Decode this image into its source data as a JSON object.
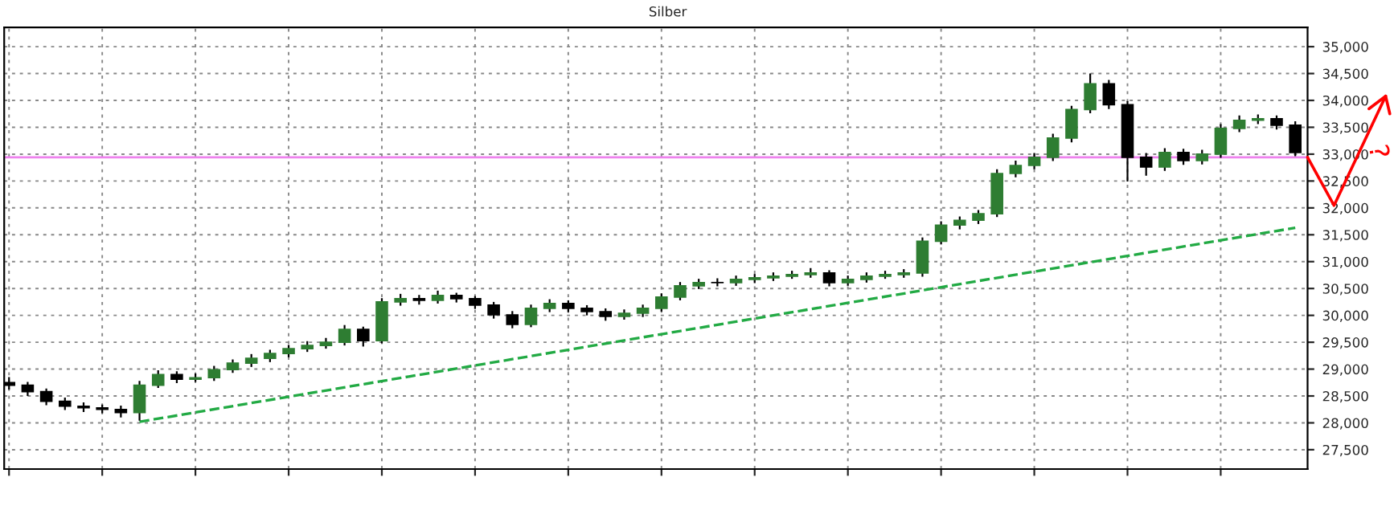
{
  "chart_data": {
    "type": "candlestick",
    "title": "Silber",
    "categories": [
      null,
      null,
      null,
      null,
      null,
      null,
      null,
      null,
      null,
      null,
      null,
      null,
      null,
      null,
      null,
      null,
      null,
      null,
      null,
      null,
      null,
      null,
      null,
      null,
      null,
      null,
      null,
      null,
      null,
      null,
      null,
      null,
      null,
      null,
      null,
      null,
      null,
      null,
      null,
      null,
      null,
      null,
      null,
      null,
      null,
      null,
      null,
      null,
      null,
      null,
      null,
      null,
      null,
      null,
      null,
      null,
      null,
      null,
      null,
      null,
      null,
      null,
      null,
      null,
      null,
      null,
      null,
      null,
      null,
      null
    ],
    "ohlc": [
      [
        28750,
        28850,
        28620,
        28700
      ],
      [
        28700,
        28760,
        28500,
        28580
      ],
      [
        28580,
        28640,
        28330,
        28400
      ],
      [
        28400,
        28470,
        28240,
        28310
      ],
      [
        28310,
        28380,
        28200,
        28280
      ],
      [
        28280,
        28340,
        28180,
        28250
      ],
      [
        28250,
        28320,
        28100,
        28190
      ],
      [
        28190,
        28780,
        28040,
        28700
      ],
      [
        28700,
        28980,
        28650,
        28900
      ],
      [
        28900,
        28960,
        28740,
        28810
      ],
      [
        28810,
        28920,
        28760,
        28840
      ],
      [
        28840,
        29060,
        28780,
        28990
      ],
      [
        28990,
        29180,
        28930,
        29110
      ],
      [
        29110,
        29280,
        29040,
        29200
      ],
      [
        29200,
        29360,
        29130,
        29290
      ],
      [
        29290,
        29450,
        29220,
        29380
      ],
      [
        29380,
        29520,
        29320,
        29440
      ],
      [
        29440,
        29580,
        29380,
        29500
      ],
      [
        29500,
        29820,
        29440,
        29740
      ],
      [
        29740,
        29790,
        29420,
        29530
      ],
      [
        29530,
        30320,
        29480,
        30250
      ],
      [
        30250,
        30400,
        30180,
        30310
      ],
      [
        30310,
        30380,
        30200,
        30280
      ],
      [
        30280,
        30460,
        30220,
        30370
      ],
      [
        30370,
        30420,
        30240,
        30310
      ],
      [
        30310,
        30360,
        30120,
        30190
      ],
      [
        30190,
        30250,
        29940,
        30010
      ],
      [
        30010,
        30080,
        29760,
        29830
      ],
      [
        29830,
        30200,
        29780,
        30130
      ],
      [
        30130,
        30300,
        30060,
        30220
      ],
      [
        30220,
        30280,
        30060,
        30130
      ],
      [
        30130,
        30190,
        30000,
        30070
      ],
      [
        30070,
        30130,
        29900,
        29980
      ],
      [
        29980,
        30110,
        29920,
        30040
      ],
      [
        30040,
        30200,
        29970,
        30130
      ],
      [
        30130,
        30410,
        30070,
        30340
      ],
      [
        30340,
        30620,
        30280,
        30550
      ],
      [
        30550,
        30680,
        30490,
        30610
      ],
      [
        30610,
        30690,
        30540,
        30610
      ],
      [
        30610,
        30740,
        30550,
        30670
      ],
      [
        30670,
        30770,
        30600,
        30700
      ],
      [
        30700,
        30800,
        30640,
        30730
      ],
      [
        30730,
        30830,
        30680,
        30760
      ],
      [
        30760,
        30880,
        30700,
        30790
      ],
      [
        30790,
        30840,
        30540,
        30610
      ],
      [
        30610,
        30740,
        30550,
        30670
      ],
      [
        30670,
        30800,
        30610,
        30730
      ],
      [
        30730,
        30830,
        30680,
        30760
      ],
      [
        30760,
        30860,
        30700,
        30790
      ],
      [
        30790,
        31450,
        30720,
        31380
      ],
      [
        31380,
        31750,
        31320,
        31680
      ],
      [
        31680,
        31840,
        31600,
        31770
      ],
      [
        31770,
        31960,
        31700,
        31890
      ],
      [
        31890,
        32720,
        31830,
        32640
      ],
      [
        32640,
        32880,
        32570,
        32790
      ],
      [
        32790,
        33020,
        32720,
        32940
      ],
      [
        32940,
        33380,
        32870,
        33300
      ],
      [
        33300,
        33900,
        33220,
        33830
      ],
      [
        33830,
        34500,
        33760,
        34310
      ],
      [
        34310,
        34380,
        33840,
        33920
      ],
      [
        33920,
        33990,
        32490,
        32940
      ],
      [
        32940,
        33020,
        32600,
        32760
      ],
      [
        32760,
        33110,
        32690,
        33030
      ],
      [
        33030,
        33100,
        32800,
        32880
      ],
      [
        32880,
        33080,
        32810,
        33000
      ],
      [
        33000,
        33560,
        32930,
        33480
      ],
      [
        33480,
        33720,
        33410,
        33630
      ],
      [
        33630,
        33740,
        33560,
        33660
      ],
      [
        33660,
        33720,
        33460,
        33540
      ],
      [
        33540,
        33610,
        32960,
        33030
      ]
    ],
    "series": [
      {
        "type": "line",
        "values": [
          null,
          null,
          null,
          null,
          null,
          null,
          null,
          28020,
          null,
          null,
          null,
          null,
          null,
          null,
          null,
          null,
          null,
          null,
          null,
          null,
          null,
          null,
          null,
          null,
          null,
          null,
          null,
          null,
          null,
          null,
          null,
          null,
          null,
          null,
          null,
          null,
          null,
          null,
          null,
          null,
          null,
          null,
          null,
          null,
          null,
          null,
          null,
          null,
          null,
          null,
          null,
          null,
          null,
          null,
          null,
          null,
          null,
          null,
          null,
          null,
          null,
          null,
          null,
          null,
          null,
          null,
          null,
          null,
          null,
          31630
        ],
        "color": "#22aa44",
        "line_style": "dashed"
      }
    ],
    "color": "#000000",
    "colors": [
      "#000000",
      "#000000",
      "#000000",
      "#000000",
      "#000000",
      "#000000",
      "#000000",
      "#2e7d32",
      "#2e7d32",
      "#000000",
      "#2e7d32",
      "#2e7d32",
      "#2e7d32",
      "#2e7d32",
      "#2e7d32",
      "#2e7d32",
      "#2e7d32",
      "#2e7d32",
      "#2e7d32",
      "#000000",
      "#2e7d32",
      "#2e7d32",
      "#000000",
      "#2e7d32",
      "#000000",
      "#000000",
      "#000000",
      "#000000",
      "#2e7d32",
      "#2e7d32",
      "#000000",
      "#000000",
      "#000000",
      "#2e7d32",
      "#2e7d32",
      "#2e7d32",
      "#2e7d32",
      "#2e7d32",
      "#000000",
      "#2e7d32",
      "#2e7d32",
      "#2e7d32",
      "#2e7d32",
      "#2e7d32",
      "#000000",
      "#2e7d32",
      "#2e7d32",
      "#2e7d32",
      "#2e7d32",
      "#2e7d32",
      "#2e7d32",
      "#2e7d32",
      "#2e7d32",
      "#2e7d32",
      "#2e7d32",
      "#2e7d32",
      "#2e7d32",
      "#2e7d32",
      "#2e7d32",
      "#000000",
      "#000000",
      "#000000",
      "#2e7d32",
      "#000000",
      "#2e7d32",
      "#2e7d32",
      "#2e7d32",
      "#2e7d32",
      "#000000",
      "#000000"
    ],
    "ylim": [
      27140,
      35360
    ],
    "yticks": [
      {
        "value": 27500,
        "label": "27,500"
      },
      {
        "value": 28000,
        "label": "28,000"
      },
      {
        "value": 28500,
        "label": "28,500"
      },
      {
        "value": 29000,
        "label": "29,000"
      },
      {
        "value": 29500,
        "label": "29,500"
      },
      {
        "value": 30000,
        "label": "30,000"
      },
      {
        "value": 30500,
        "label": "30,500"
      },
      {
        "value": 31000,
        "label": "31,000"
      },
      {
        "value": 31500,
        "label": "31,500"
      },
      {
        "value": 32000,
        "label": "32,000"
      },
      {
        "value": 32500,
        "label": "32,500"
      },
      {
        "value": 33000,
        "label": "33,000"
      },
      {
        "value": 33500,
        "label": "33,500"
      },
      {
        "value": 34000,
        "label": "34,000"
      },
      {
        "value": 34500,
        "label": "34,500"
      },
      {
        "value": 35000,
        "label": "35,000"
      }
    ],
    "ref_lines": [
      {
        "axis": "y",
        "value": 32940,
        "color": "#ee82ee"
      }
    ],
    "annotations": [
      "?"
    ],
    "grid": true
  }
}
